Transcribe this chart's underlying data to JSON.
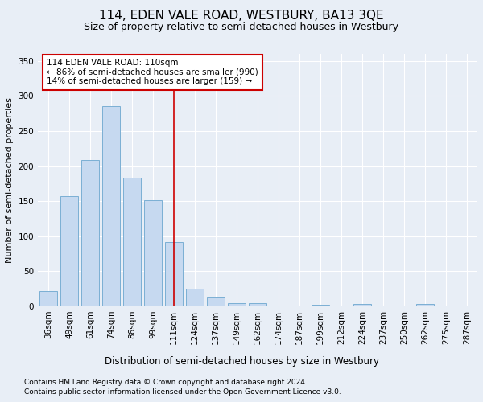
{
  "title": "114, EDEN VALE ROAD, WESTBURY, BA13 3QE",
  "subtitle": "Size of property relative to semi-detached houses in Westbury",
  "xlabel": "Distribution of semi-detached houses by size in Westbury",
  "ylabel": "Number of semi-detached properties",
  "footer_line1": "Contains HM Land Registry data © Crown copyright and database right 2024.",
  "footer_line2": "Contains public sector information licensed under the Open Government Licence v3.0.",
  "categories": [
    "36sqm",
    "49sqm",
    "61sqm",
    "74sqm",
    "86sqm",
    "99sqm",
    "111sqm",
    "124sqm",
    "137sqm",
    "149sqm",
    "162sqm",
    "174sqm",
    "187sqm",
    "199sqm",
    "212sqm",
    "224sqm",
    "237sqm",
    "250sqm",
    "262sqm",
    "275sqm",
    "287sqm"
  ],
  "values": [
    22,
    157,
    209,
    285,
    183,
    151,
    92,
    25,
    13,
    5,
    5,
    0,
    0,
    2,
    0,
    3,
    0,
    0,
    3,
    0,
    0
  ],
  "bar_color": "#c6d9f0",
  "bar_edge_color": "#7bafd4",
  "highlight_index": 6,
  "highlight_line_color": "#cc0000",
  "annotation_line1": "114 EDEN VALE ROAD: 110sqm",
  "annotation_line2": "← 86% of semi-detached houses are smaller (990)",
  "annotation_line3": "14% of semi-detached houses are larger (159) →",
  "annotation_box_color": "#cc0000",
  "ylim": [
    0,
    360
  ],
  "yticks": [
    0,
    50,
    100,
    150,
    200,
    250,
    300,
    350
  ],
  "background_color": "#e8eef6",
  "plot_bg_color": "#e8eef6",
  "grid_color": "#ffffff",
  "title_fontsize": 11,
  "subtitle_fontsize": 9,
  "xlabel_fontsize": 8.5,
  "ylabel_fontsize": 8,
  "tick_fontsize": 7.5,
  "annotation_fontsize": 7.5,
  "footer_fontsize": 6.5
}
